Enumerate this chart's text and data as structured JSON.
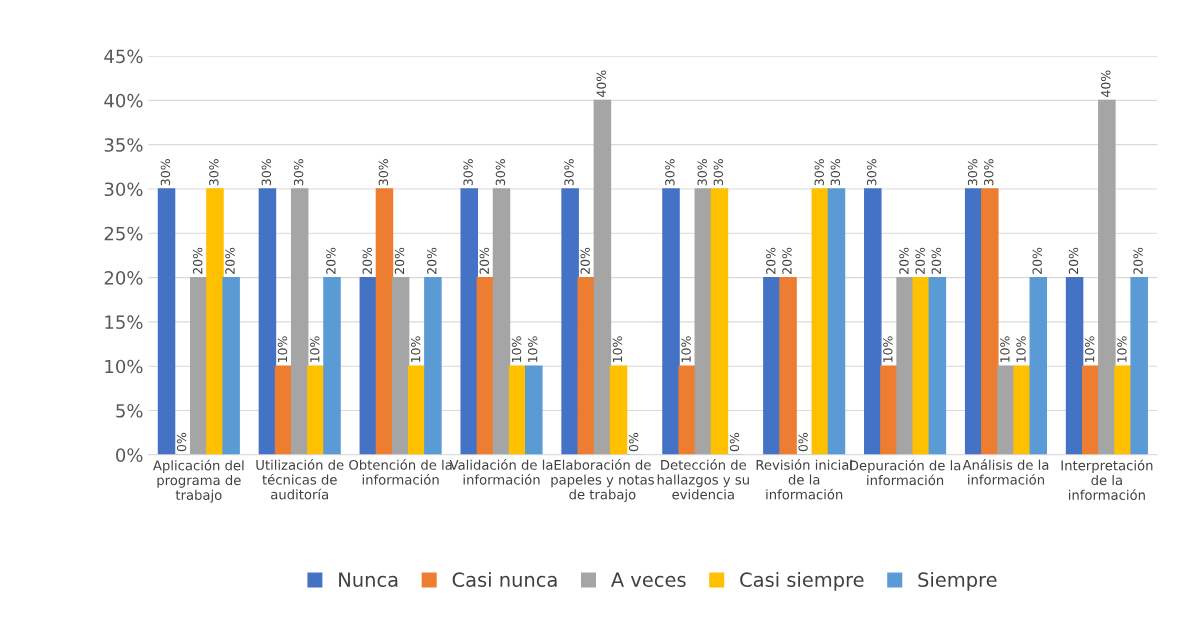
{
  "chart_data": {
    "type": "bar",
    "categories": [
      "Aplicación del programa de trabajo",
      "Utilización de técnicas de auditoría",
      "Obtención de la información",
      "Validación de la información",
      "Elaboración de papeles y notas de trabajo",
      "Detección de hallazgos y su evidencia",
      "Revisión inicial de la información",
      "Depuración de la información",
      "Análisis de la información",
      "Interpretación de la información"
    ],
    "series": [
      {
        "name": "Nunca",
        "color": "#4472c4",
        "values": [
          30,
          30,
          20,
          30,
          30,
          30,
          20,
          30,
          30,
          20
        ],
        "value_labels": [
          "30%",
          "30%",
          "20%",
          "30%",
          "30%",
          "30%",
          "20%",
          "30%",
          "30%",
          "20%"
        ]
      },
      {
        "name": "Casi nunca",
        "color": "#ed7d31",
        "values": [
          0,
          10,
          30,
          20,
          20,
          10,
          20,
          10,
          30,
          10
        ],
        "value_labels": [
          "0%",
          "10%",
          "30%",
          "20%",
          "20%",
          "10%",
          "20%",
          "10%",
          "30%",
          "10%"
        ]
      },
      {
        "name": "A veces",
        "color": "#a5a5a5",
        "values": [
          20,
          30,
          20,
          30,
          40,
          30,
          0,
          20,
          10,
          40
        ],
        "value_labels": [
          "20%",
          "30%",
          "20%",
          "30%",
          "40%",
          "30%",
          "0%",
          "20%",
          "10%",
          "40%"
        ]
      },
      {
        "name": "Casi siempre",
        "color": "#ffc000",
        "values": [
          30,
          10,
          10,
          10,
          10,
          30,
          30,
          20,
          10,
          10
        ],
        "value_labels": [
          "30%",
          "10%",
          "10%",
          "10%",
          "10%",
          "30%",
          "30%",
          "20%",
          "10%",
          "10%"
        ]
      },
      {
        "name": "Siempre",
        "color": "#5b9bd5",
        "values": [
          20,
          20,
          20,
          10,
          0,
          0,
          30,
          20,
          20,
          20
        ],
        "value_labels": [
          "20%",
          "20%",
          "20%",
          "10%",
          "0%",
          "0%",
          "30%",
          "20%",
          "20%",
          "20%"
        ]
      }
    ],
    "ylim": [
      0,
      45
    ],
    "yticks": [
      {
        "value": 0,
        "label": "0%"
      },
      {
        "value": 5,
        "label": "5%"
      },
      {
        "value": 10,
        "label": "10%"
      },
      {
        "value": 15,
        "label": "15%"
      },
      {
        "value": 20,
        "label": "20%"
      },
      {
        "value": 25,
        "label": "25%"
      },
      {
        "value": 30,
        "label": "30%"
      },
      {
        "value": 35,
        "label": "35%"
      },
      {
        "value": 40,
        "label": "40%"
      },
      {
        "value": 45,
        "label": "45%"
      }
    ],
    "grid": "y",
    "legend": "bottom"
  }
}
